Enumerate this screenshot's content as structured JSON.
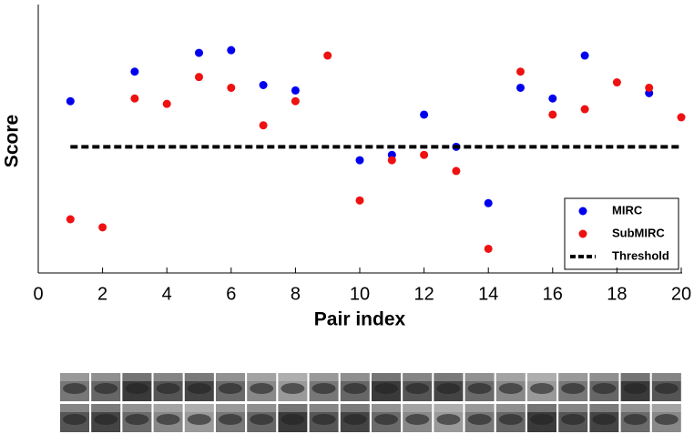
{
  "chart_data": {
    "type": "scatter",
    "x_label": "Pair index",
    "y_label": "Score",
    "xlim": [
      0,
      20
    ],
    "xticks": [
      0,
      2,
      4,
      6,
      8,
      10,
      12,
      14,
      16,
      18,
      20
    ],
    "ylim": [
      0,
      1
    ],
    "legend": "lower right",
    "series": [
      {
        "name": "MIRC",
        "color": "#0000ee",
        "x": [
          1,
          3,
          5,
          6,
          7,
          8,
          10,
          11,
          12,
          13,
          14,
          15,
          16,
          17,
          19
        ],
        "values": [
          0.64,
          0.75,
          0.82,
          0.83,
          0.7,
          0.68,
          0.42,
          0.44,
          0.59,
          0.47,
          0.26,
          0.69,
          0.65,
          0.81,
          0.67
        ]
      },
      {
        "name": "SubMIRC",
        "color": "#ee1111",
        "x": [
          1,
          2,
          3,
          4,
          5,
          6,
          7,
          8,
          9,
          10,
          11,
          12,
          13,
          14,
          15,
          16,
          17,
          18,
          19,
          20
        ],
        "values": [
          0.2,
          0.17,
          0.65,
          0.63,
          0.73,
          0.69,
          0.55,
          0.64,
          0.81,
          0.27,
          0.42,
          0.44,
          0.38,
          0.09,
          0.75,
          0.59,
          0.61,
          0.71,
          0.69,
          0.58
        ]
      },
      {
        "name": "Threshold",
        "color": "#000000",
        "style": "dashed",
        "x": [
          1,
          20
        ],
        "values": [
          0.47,
          0.47
        ]
      }
    ]
  }
}
